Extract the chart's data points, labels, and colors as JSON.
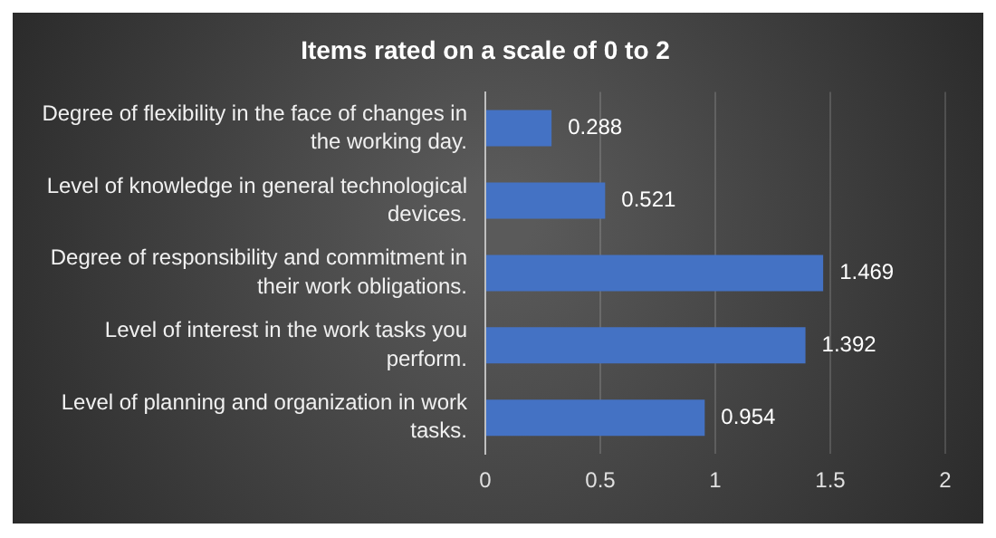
{
  "chart_data": {
    "type": "bar",
    "orientation": "horizontal",
    "title": "Items rated on a scale of 0 to 2",
    "categories": [
      "Degree of flexibility in the face of changes in the working day.",
      "Level of knowledge in general technological devices.",
      "Degree of responsibility and commitment in their work obligations.",
      "Level of interest in the work tasks you perform.",
      "Level of planning and organization in work tasks."
    ],
    "values": [
      0.288,
      0.521,
      1.469,
      1.392,
      0.954
    ],
    "color": "#4472c4",
    "data_labels": true,
    "xlim": [
      0,
      2
    ],
    "xticks": [
      0,
      0.5,
      1,
      1.5,
      2
    ],
    "grid": "x"
  }
}
